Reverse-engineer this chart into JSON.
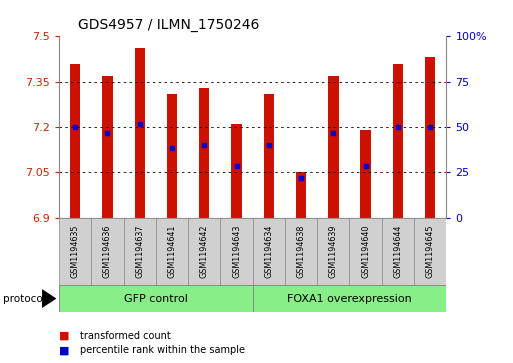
{
  "title": "GDS4957 / ILMN_1750246",
  "samples": [
    "GSM1194635",
    "GSM1194636",
    "GSM1194637",
    "GSM1194641",
    "GSM1194642",
    "GSM1194643",
    "GSM1194634",
    "GSM1194638",
    "GSM1194639",
    "GSM1194640",
    "GSM1194644",
    "GSM1194645"
  ],
  "bar_tops": [
    7.41,
    7.37,
    7.46,
    7.31,
    7.33,
    7.21,
    7.31,
    7.05,
    7.37,
    7.19,
    7.41,
    7.43
  ],
  "bar_bottoms": [
    6.9,
    6.9,
    6.9,
    6.9,
    6.9,
    6.9,
    6.9,
    6.9,
    6.9,
    6.9,
    6.9,
    6.9
  ],
  "percentile_vals": [
    7.2,
    7.18,
    7.21,
    7.13,
    7.14,
    7.07,
    7.14,
    7.03,
    7.18,
    7.07,
    7.2,
    7.2
  ],
  "ylim": [
    6.9,
    7.5
  ],
  "yticks": [
    6.9,
    7.05,
    7.2,
    7.35,
    7.5
  ],
  "ytick_labels": [
    "6.9",
    "7.05",
    "7.2",
    "7.35",
    "7.5"
  ],
  "y2ticks": [
    0,
    25,
    50,
    75,
    100
  ],
  "y2tick_labels": [
    "0",
    "25",
    "50",
    "75",
    "100%"
  ],
  "bar_color": "#cc1100",
  "percentile_color": "#0000cc",
  "group1_label": "GFP control",
  "group2_label": "FOXA1 overexpression",
  "group1_count": 6,
  "group2_count": 6,
  "group_color": "#88ee88",
  "legend_bar_label": "transformed count",
  "legend_pct_label": "percentile rank within the sample",
  "protocol_label": "protocol",
  "bg_color": "#ffffff",
  "plot_bg_color": "#ffffff",
  "tick_label_color_left": "#cc2200",
  "tick_label_color_right": "#0000cc",
  "grid_color": "#000000",
  "sample_bg": "#d0d0d0",
  "border_color": "#888888"
}
